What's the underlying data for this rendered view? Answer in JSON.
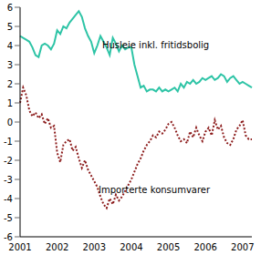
{
  "chart_data": {
    "type": "line",
    "categories": [
      "2001",
      null,
      null,
      null,
      null,
      null,
      null,
      null,
      null,
      null,
      null,
      null,
      "2002",
      null,
      null,
      null,
      null,
      null,
      null,
      null,
      null,
      null,
      null,
      null,
      "2003",
      null,
      null,
      null,
      null,
      null,
      null,
      null,
      null,
      null,
      null,
      null,
      "2004",
      null,
      null,
      null,
      null,
      null,
      null,
      null,
      null,
      null,
      null,
      null,
      "2005",
      null,
      null,
      null,
      null,
      null,
      null,
      null,
      null,
      null,
      null,
      null,
      "2006",
      null,
      null,
      null,
      null,
      null,
      null,
      null,
      null,
      null,
      null,
      null,
      "2007",
      null,
      null,
      null
    ],
    "series": [
      {
        "name": "Husleie inkl. fritidsbolig",
        "color": "#2ec4a6",
        "line_style": "solid",
        "values": [
          4.5,
          4.4,
          4.3,
          4.2,
          3.9,
          3.5,
          3.4,
          4.0,
          4.1,
          4.0,
          3.8,
          4.1,
          4.8,
          4.6,
          5.0,
          4.9,
          5.2,
          5.4,
          5.6,
          5.8,
          5.5,
          4.9,
          4.5,
          4.2,
          3.6,
          4.0,
          4.5,
          4.2,
          3.9,
          3.5,
          4.4,
          4.1,
          3.7,
          4.0,
          3.8,
          3.9,
          3.9,
          3.0,
          2.4,
          1.8,
          1.9,
          1.6,
          1.7,
          1.7,
          1.6,
          1.8,
          1.6,
          1.7,
          1.6,
          1.7,
          1.8,
          1.6,
          2.0,
          1.8,
          2.1,
          2.0,
          2.2,
          2.0,
          2.1,
          2.3,
          2.2,
          2.3,
          2.4,
          2.2,
          2.3,
          2.5,
          2.4,
          2.1,
          2.3,
          2.4,
          2.2,
          2.0,
          2.1,
          2.0,
          1.9,
          1.8
        ]
      },
      {
        "name": "Importerte konsumvarer",
        "color": "#8c1c1c",
        "line_style": "dotted",
        "values": [
          1.0,
          1.8,
          1.4,
          0.6,
          0.3,
          0.5,
          0.2,
          0.4,
          -0.1,
          0.2,
          -0.3,
          -0.2,
          -1.6,
          -2.1,
          -1.2,
          -1.0,
          -0.9,
          -1.5,
          -1.3,
          -1.9,
          -2.4,
          -2.0,
          -2.5,
          -2.8,
          -3.1,
          -3.4,
          -3.9,
          -4.3,
          -4.5,
          -4.0,
          -4.3,
          -3.8,
          -4.1,
          -3.9,
          -3.6,
          -3.3,
          -3.0,
          -2.6,
          -2.2,
          -1.9,
          -1.5,
          -1.2,
          -1.0,
          -0.7,
          -0.8,
          -0.5,
          -0.6,
          -0.4,
          -0.1,
          0.0,
          -0.3,
          -0.7,
          -1.0,
          -0.9,
          -1.1,
          -0.5,
          -0.8,
          -0.3,
          -0.7,
          -1.0,
          -0.5,
          -0.3,
          -0.7,
          0.1,
          -0.4,
          -0.2,
          -0.8,
          -1.1,
          -1.2,
          -0.9,
          -0.4,
          -0.2,
          0.1,
          -0.7,
          -0.9,
          -0.9
        ]
      }
    ],
    "ylim": [
      -6,
      6
    ],
    "yticks": [
      -6,
      -5,
      -4,
      -3,
      -2,
      -1,
      0,
      1,
      2,
      3,
      4,
      5,
      6
    ],
    "grid": false
  }
}
